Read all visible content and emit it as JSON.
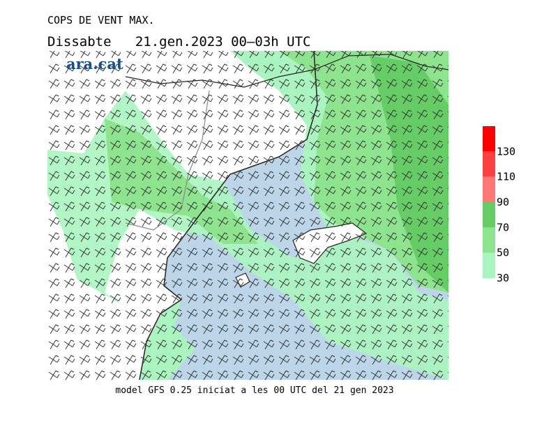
{
  "header": {
    "title": "COPS DE VENT MAX.",
    "subtitle": "Dissabte   21.gen.2023 00–03h UTC"
  },
  "logo": "ara.cat",
  "footer": "model GFS 0.25 iniciat a les 00 UTC del 21 gen 2023",
  "colorbar": {
    "lim": [
      30,
      150
    ],
    "ticks": [
      30,
      50,
      70,
      90,
      110,
      130
    ],
    "colors": [
      "#aaf5bf",
      "#8ee38e",
      "#66cc66",
      "#ff7777",
      "#ff4040",
      "#ff0000"
    ]
  }
}
